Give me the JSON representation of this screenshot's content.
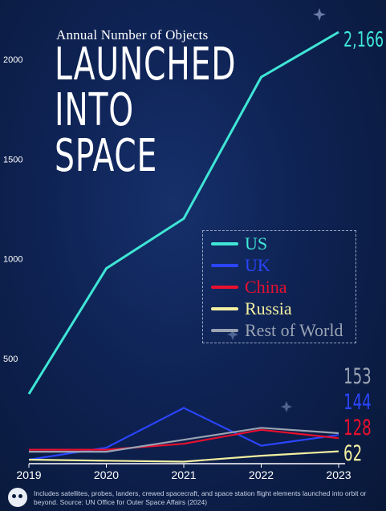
{
  "subtitle": "Annual Number of Objects",
  "title_lines": [
    "LAUNCHED",
    "INTO",
    "SPACE"
  ],
  "footnote": {
    "icon": "visual-capitalist-logo-icon",
    "text": "Includes satellites, probes, landers, crewed spacecraft, and space station flight elements launched into orbit or beyond. Source: UN Office for Outer Space Affairs (2024)"
  },
  "chart_data": {
    "type": "line",
    "title": "LAUNCHED INTO SPACE",
    "subtitle": "Annual Number of Objects",
    "x": [
      2019,
      2020,
      2021,
      2022,
      2023
    ],
    "x_tick_labels": [
      "2019",
      "2020",
      "2021",
      "2022",
      "2023"
    ],
    "y_tick_labels": [
      "2000",
      "1500",
      "1000",
      "500"
    ],
    "y_ticks": [
      2000,
      1500,
      1000,
      500
    ],
    "ylim": [
      0,
      2166
    ],
    "grid": false,
    "legend_position": "right-center",
    "series": [
      {
        "name": "US",
        "color": "#3fe6d6",
        "values": [
          350,
          980,
          1230,
          1940,
          2166
        ],
        "end_label": "2,166"
      },
      {
        "name": "UK",
        "color": "#2a45ff",
        "values": [
          20,
          80,
          280,
          90,
          144
        ],
        "end_label": "144"
      },
      {
        "name": "China",
        "color": "#e8102e",
        "values": [
          70,
          70,
          100,
          170,
          128
        ],
        "end_label": "128"
      },
      {
        "name": "Russia",
        "color": "#f3f0a0",
        "values": [
          20,
          15,
          10,
          40,
          62
        ],
        "end_label": "62"
      },
      {
        "name": "Rest of World",
        "color": "#9aa3b3",
        "values": [
          60,
          60,
          120,
          180,
          153
        ],
        "end_label": "153"
      }
    ]
  }
}
